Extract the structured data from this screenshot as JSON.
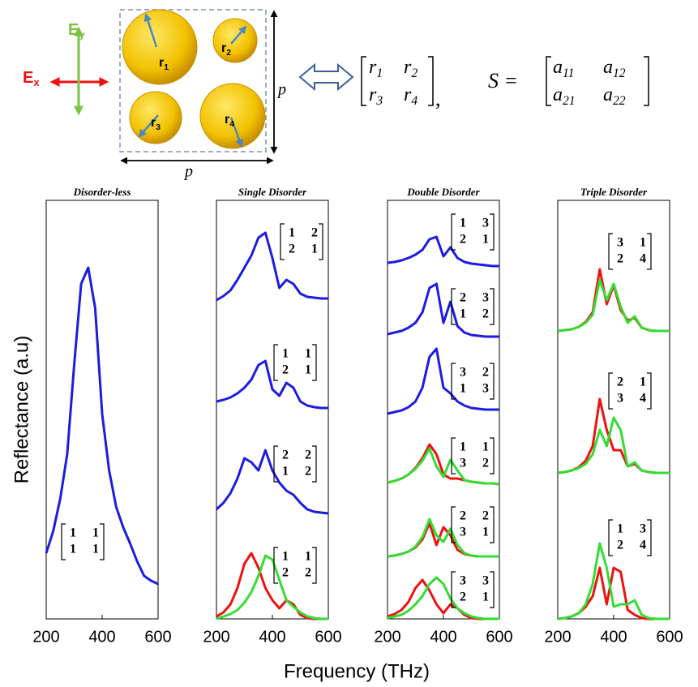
{
  "figure": {
    "xlabel": "Frequency (THz)",
    "ylabel": "Reflectance (a.u)"
  },
  "diagram": {
    "field_x": [
      "E",
      "x"
    ],
    "field_y": [
      "E",
      "y"
    ],
    "radii": [
      [
        "r",
        "1"
      ],
      [
        "r",
        "2"
      ],
      [
        "r",
        "3"
      ],
      [
        "r",
        "4"
      ]
    ],
    "period": "p",
    "equation_lhs": "S =",
    "coefficients": [
      [
        "a",
        "11"
      ],
      [
        "a",
        "12"
      ],
      [
        "a",
        "21"
      ],
      [
        "a",
        "22"
      ]
    ]
  },
  "chart_data": [
    {
      "type": "line",
      "title": "Disorder-less",
      "x": [
        200,
        225,
        250,
        275,
        300,
        325,
        350,
        375,
        400,
        425,
        450,
        475,
        500,
        525,
        550,
        575,
        600
      ],
      "xlim": [
        200,
        600
      ],
      "xticks": [
        200,
        400,
        600
      ],
      "ylim": [
        0,
        520
      ],
      "series": [
        {
          "color": "#1c1ce0",
          "values": [
            81,
            108,
            148,
            203,
            313,
            413,
            433,
            383,
            253,
            183,
            138,
            113,
            93,
            71,
            53,
            47,
            43
          ]
        }
      ],
      "annotations": [
        [
          [
            1,
            1
          ],
          [
            1,
            1
          ]
        ]
      ]
    },
    {
      "type": "line",
      "title": "Single Disorder",
      "x": [
        200,
        225,
        250,
        275,
        300,
        325,
        350,
        375,
        400,
        425,
        450,
        475,
        500,
        525,
        550,
        575,
        600
      ],
      "xlim": [
        200,
        600
      ],
      "xticks": [
        200,
        400,
        600
      ],
      "ylim": [
        0,
        520
      ],
      "series": [
        {
          "color": "#1c1ce0",
          "values": [
            393,
            398,
            405,
            418,
            433,
            448,
            470,
            476,
            445,
            408,
            418,
            413,
            401,
            397,
            396,
            395,
            395
          ]
        },
        {
          "color": "#1c1ce0",
          "values": [
            268,
            270,
            273,
            278,
            285,
            295,
            313,
            318,
            283,
            275,
            291,
            285,
            268,
            263,
            261,
            260,
            260
          ]
        },
        {
          "color": "#1c1ce0",
          "values": [
            135,
            143,
            155,
            173,
            198,
            193,
            183,
            208,
            183,
            168,
            158,
            153,
            143,
            135,
            132,
            131,
            130
          ]
        },
        {
          "color": "#ee1111",
          "values": [
            3,
            8,
            18,
            38,
            68,
            81,
            63,
            38,
            23,
            13,
            23,
            18,
            5,
            1,
            0,
            0,
            0
          ]
        },
        {
          "color": "#33dd33",
          "values": [
            0,
            3,
            6,
            11,
            20,
            33,
            53,
            78,
            73,
            48,
            23,
            15,
            8,
            3,
            1,
            0,
            0
          ]
        }
      ],
      "annotations": [
        [
          [
            1,
            2
          ],
          [
            2,
            1
          ]
        ],
        [
          [
            1,
            1
          ],
          [
            2,
            1
          ]
        ],
        [
          [
            2,
            2
          ],
          [
            1,
            2
          ]
        ],
        [
          [
            1,
            1
          ],
          [
            2,
            2
          ]
        ]
      ]
    },
    {
      "type": "line",
      "title": "Double Disorder",
      "x": [
        200,
        225,
        250,
        275,
        300,
        325,
        350,
        375,
        400,
        425,
        450,
        475,
        500,
        525,
        550,
        575,
        600
      ],
      "xlim": [
        200,
        600
      ],
      "xticks": [
        200,
        400,
        600
      ],
      "ylim": [
        0,
        520
      ],
      "series": [
        {
          "color": "#1c1ce0",
          "values": [
            439,
            440,
            442,
            445,
            449,
            455,
            468,
            471,
            447,
            458,
            445,
            440,
            438,
            437,
            436,
            435,
            435
          ]
        },
        {
          "color": "#1c1ce0",
          "values": [
            351,
            353,
            355,
            359,
            365,
            378,
            408,
            413,
            365,
            391,
            361,
            353,
            350,
            349,
            348,
            348,
            348
          ]
        },
        {
          "color": "#1c1ce0",
          "values": [
            253,
            255,
            257,
            261,
            268,
            285,
            323,
            333,
            285,
            278,
            268,
            263,
            260,
            259,
            258,
            258,
            258
          ]
        },
        {
          "color": "#ee1111",
          "values": [
            168,
            170,
            173,
            178,
            186,
            198,
            215,
            203,
            178,
            173,
            173,
            171,
            169,
            168,
            167,
            167,
            166
          ]
        },
        {
          "color": "#33dd33",
          "values": [
            168,
            170,
            173,
            178,
            185,
            195,
            210,
            188,
            175,
            196,
            183,
            171,
            169,
            168,
            167,
            167,
            166
          ]
        },
        {
          "color": "#ee1111",
          "values": [
            77,
            78,
            80,
            83,
            88,
            98,
            118,
            91,
            113,
            103,
            85,
            80,
            78,
            77,
            77,
            77,
            77
          ]
        },
        {
          "color": "#33dd33",
          "values": [
            77,
            78,
            80,
            83,
            89,
            101,
            123,
            103,
            95,
            111,
            91,
            81,
            78,
            77,
            77,
            77,
            77
          ]
        },
        {
          "color": "#ee1111",
          "values": [
            3,
            6,
            11,
            21,
            38,
            48,
            35,
            18,
            7,
            18,
            13,
            5,
            1,
            0,
            0,
            0,
            0
          ]
        },
        {
          "color": "#33dd33",
          "values": [
            1,
            3,
            5,
            10,
            18,
            28,
            43,
            51,
            43,
            25,
            13,
            7,
            3,
            1,
            0,
            0,
            0
          ]
        }
      ],
      "annotations": [
        [
          [
            1,
            3
          ],
          [
            2,
            1
          ]
        ],
        [
          [
            2,
            3
          ],
          [
            1,
            2
          ]
        ],
        [
          [
            3,
            2
          ],
          [
            1,
            3
          ]
        ],
        [
          [
            1,
            1
          ],
          [
            3,
            2
          ]
        ],
        [
          [
            2,
            2
          ],
          [
            3,
            1
          ]
        ],
        [
          [
            3,
            3
          ],
          [
            2,
            1
          ]
        ]
      ]
    },
    {
      "type": "line",
      "title": "Triple Disorder",
      "x": [
        200,
        225,
        250,
        275,
        300,
        325,
        350,
        375,
        400,
        425,
        450,
        475,
        500,
        525,
        550,
        575,
        600
      ],
      "xlim": [
        200,
        600
      ],
      "xticks": [
        200,
        400,
        600
      ],
      "ylim": [
        0,
        520
      ],
      "series": [
        {
          "color": "#ee1111",
          "values": [
            355,
            356,
            357,
            360,
            366,
            378,
            431,
            388,
            411,
            381,
            368,
            371,
            359,
            356,
            355,
            355,
            355
          ]
        },
        {
          "color": "#33dd33",
          "values": [
            355,
            356,
            357,
            360,
            365,
            375,
            418,
            393,
            413,
            385,
            365,
            373,
            359,
            356,
            355,
            355,
            355
          ]
        },
        {
          "color": "#ee1111",
          "values": [
            180,
            181,
            183,
            187,
            195,
            213,
            271,
            233,
            208,
            208,
            188,
            191,
            183,
            181,
            180,
            180,
            180
          ]
        },
        {
          "color": "#33dd33",
          "values": [
            180,
            181,
            183,
            186,
            191,
            203,
            233,
            213,
            248,
            233,
            188,
            193,
            183,
            181,
            180,
            180,
            180
          ]
        },
        {
          "color": "#ee1111",
          "values": [
            0,
            1,
            3,
            7,
            15,
            28,
            63,
            18,
            63,
            58,
            11,
            5,
            1,
            0,
            0,
            0,
            0
          ]
        },
        {
          "color": "#33dd33",
          "values": [
            0,
            1,
            3,
            7,
            18,
            43,
            93,
            63,
            15,
            18,
            18,
            23,
            5,
            1,
            0,
            0,
            0
          ]
        }
      ],
      "annotations": [
        [
          [
            3,
            1
          ],
          [
            2,
            4
          ]
        ],
        [
          [
            2,
            1
          ],
          [
            3,
            4
          ]
        ],
        [
          [
            1,
            3
          ],
          [
            2,
            4
          ]
        ]
      ]
    }
  ]
}
